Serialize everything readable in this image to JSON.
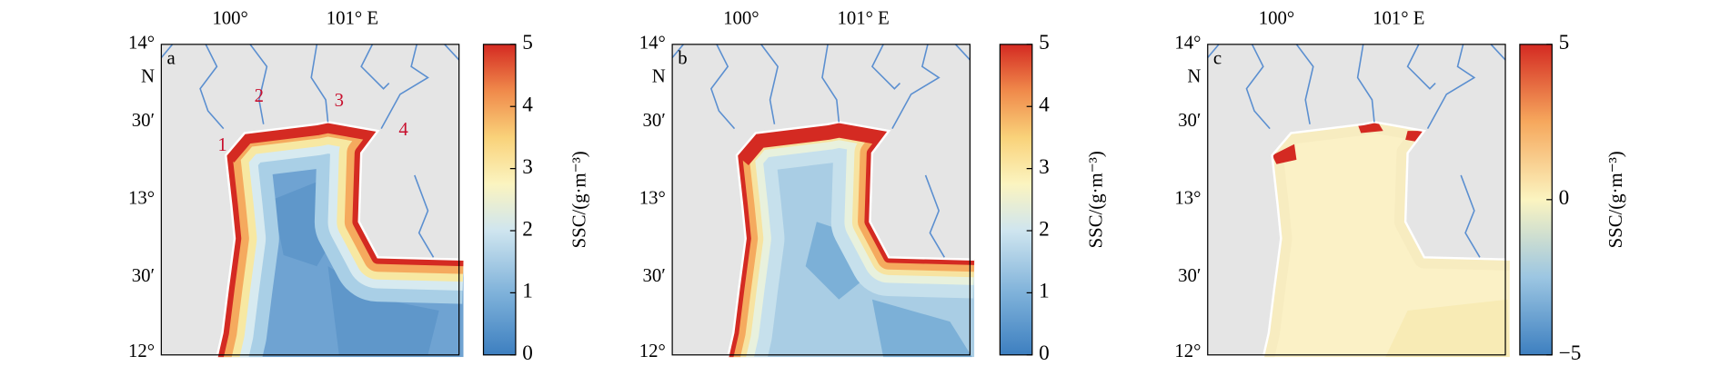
{
  "panels": [
    {
      "label": "a",
      "river_labels": [
        "1",
        "2",
        "3",
        "4"
      ],
      "colorbar": {
        "label": "SSC/(g·m⁻³)",
        "lim": [
          0,
          5
        ],
        "ticks": [
          0,
          1,
          2,
          3,
          4,
          5
        ]
      }
    },
    {
      "label": "b",
      "colorbar": {
        "label": "SSC/(g·m⁻³)",
        "lim": [
          0,
          5
        ],
        "ticks": [
          0,
          1,
          2,
          3,
          4,
          5
        ]
      }
    },
    {
      "label": "c",
      "colorbar": {
        "label": "SSC/(g·m⁻³)",
        "lim": [
          -5,
          5
        ],
        "ticks": [
          {
            "value": -5,
            "label": "−5"
          },
          0,
          5
        ]
      }
    }
  ],
  "lon_labels": [
    "100°",
    "101° E"
  ],
  "lat_labels": [
    "14°",
    "N",
    "30′",
    "13°",
    "30′",
    "12°"
  ]
}
